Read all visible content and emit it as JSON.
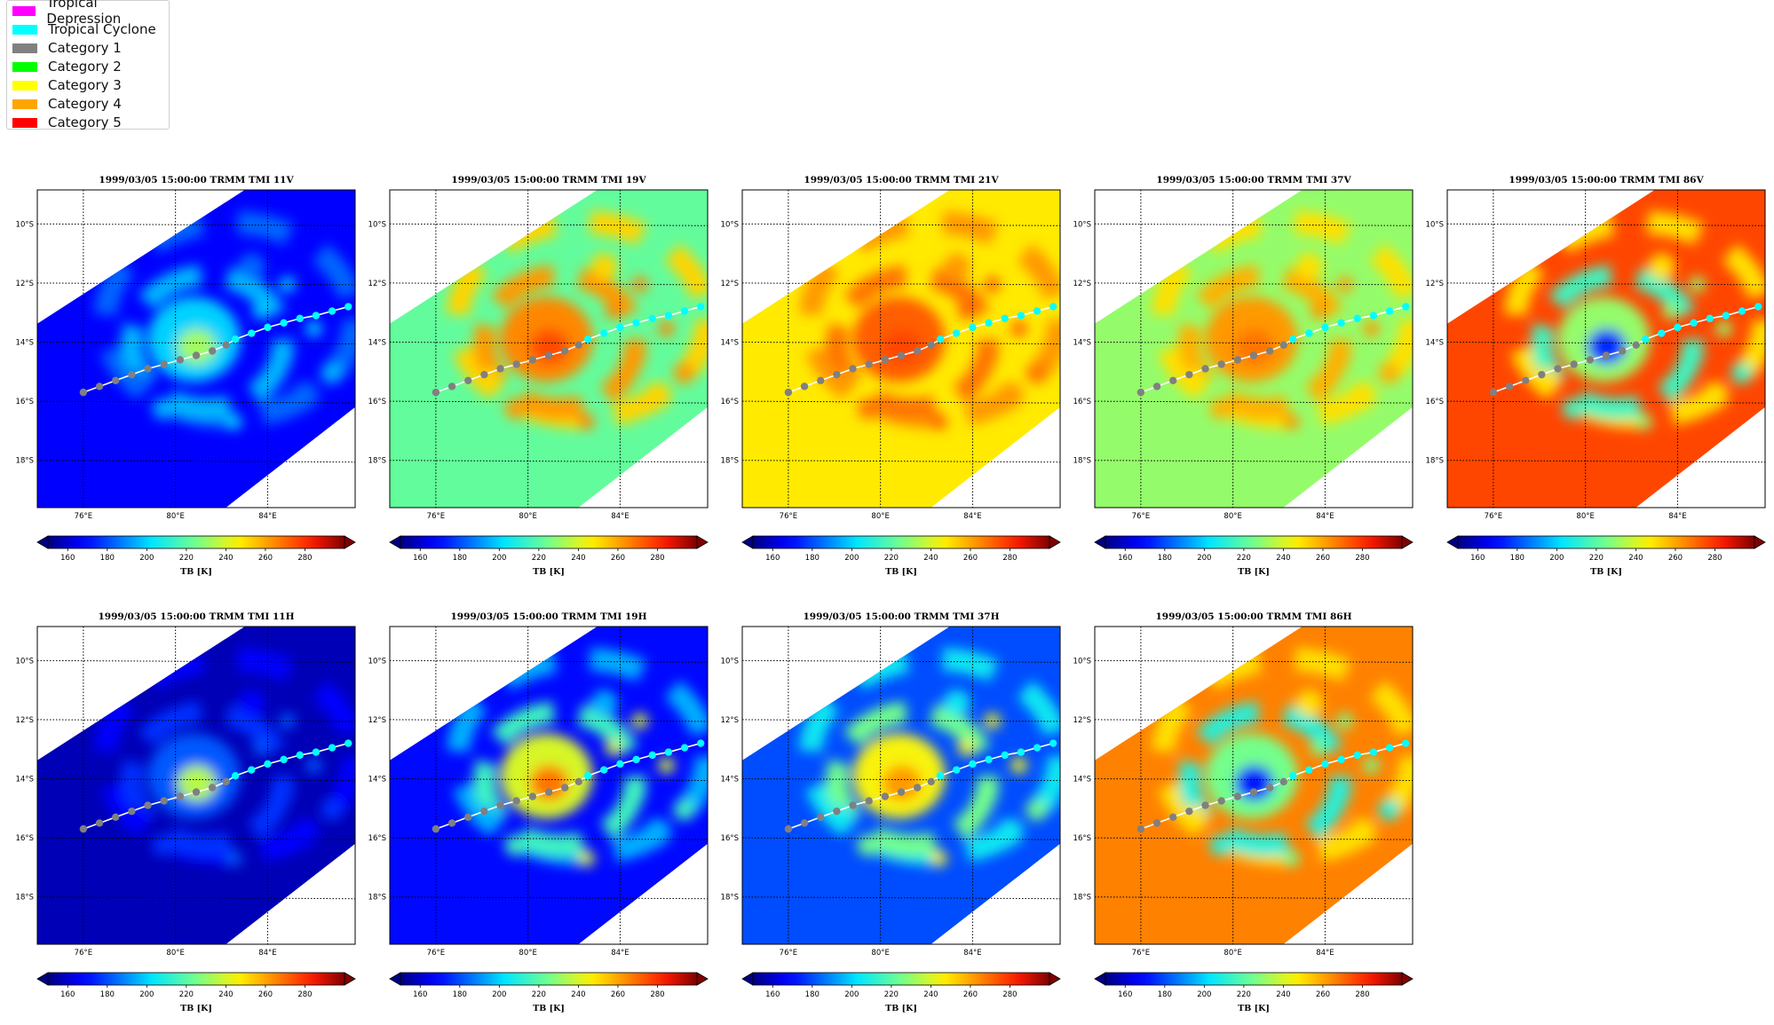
{
  "legend": {
    "items": [
      {
        "label": "Tropical Depression",
        "color": "#ff00ff"
      },
      {
        "label": "Tropical Cyclone",
        "color": "#00ffff"
      },
      {
        "label": "Category 1",
        "color": "#808080"
      },
      {
        "label": "Category 2",
        "color": "#00ff00"
      },
      {
        "label": "Category 3",
        "color": "#ffff00"
      },
      {
        "label": "Category 4",
        "color": "#ffa500"
      },
      {
        "label": "Category 5",
        "color": "#ff0000"
      }
    ]
  },
  "chart_data": [
    {
      "type": "heatmap",
      "title": "1999/03/05 15:00:00  TRMM TMI 11V",
      "channel": "11V",
      "background_tb": 168,
      "eye_tb": 232,
      "rings": [
        200,
        196,
        184
      ],
      "x_ticks": [
        "76°E",
        "80°E",
        "84°E"
      ],
      "y_ticks": [
        "10°S",
        "12°S",
        "14°S",
        "16°S",
        "18°S"
      ],
      "colorbar": {
        "ticks": [
          160,
          180,
          200,
          220,
          240,
          260,
          280
        ],
        "label": "TB [K]",
        "range": [
          150,
          300
        ],
        "colormap": "jet",
        "extend": "both"
      }
    },
    {
      "type": "heatmap",
      "title": "1999/03/05 15:00:00  TRMM TMI 19V",
      "channel": "19V",
      "background_tb": 222,
      "eye_tb": 275,
      "rings": [
        265,
        262,
        252
      ],
      "x_ticks": [
        "76°E",
        "80°E",
        "84°E"
      ],
      "y_ticks": [
        "10°S",
        "12°S",
        "14°S",
        "16°S",
        "18°S"
      ],
      "colorbar": {
        "ticks": [
          160,
          180,
          200,
          220,
          240,
          260,
          280
        ],
        "label": "TB [K]",
        "range": [
          150,
          300
        ],
        "colormap": "jet",
        "extend": "both"
      }
    },
    {
      "type": "heatmap",
      "title": "1999/03/05 15:00:00  TRMM TMI 21V",
      "channel": "21V",
      "background_tb": 248,
      "eye_tb": 276,
      "rings": [
        272,
        268,
        262
      ],
      "x_ticks": [
        "76°E",
        "80°E",
        "84°E"
      ],
      "y_ticks": [
        "10°S",
        "12°S",
        "14°S",
        "16°S",
        "18°S"
      ],
      "colorbar": {
        "ticks": [
          160,
          180,
          200,
          220,
          240,
          260,
          280
        ],
        "label": "TB [K]",
        "range": [
          150,
          300
        ],
        "colormap": "jet",
        "extend": "both"
      }
    },
    {
      "type": "heatmap",
      "title": "1999/03/05 15:00:00  TRMM TMI 37V",
      "channel": "37V",
      "background_tb": 230,
      "eye_tb": 268,
      "rings": [
        262,
        258,
        250
      ],
      "x_ticks": [
        "76°E",
        "80°E",
        "84°E"
      ],
      "y_ticks": [
        "10°S",
        "12°S",
        "14°S",
        "16°S",
        "18°S"
      ],
      "colorbar": {
        "ticks": [
          160,
          180,
          200,
          220,
          240,
          260,
          280
        ],
        "label": "TB [K]",
        "range": [
          150,
          300
        ],
        "colormap": "jet",
        "extend": "both"
      }
    },
    {
      "type": "heatmap",
      "title": "1999/03/05 15:00:00  TRMM TMI 86V",
      "channel": "86V",
      "background_tb": 276,
      "eye_tb": 175,
      "rings": [
        230,
        215,
        250
      ],
      "x_ticks": [
        "76°E",
        "80°E",
        "84°E"
      ],
      "y_ticks": [
        "10°S",
        "12°S",
        "14°S",
        "16°S",
        "18°S"
      ],
      "colorbar": {
        "ticks": [
          160,
          180,
          200,
          220,
          240,
          260,
          280
        ],
        "label": "TB [K]",
        "range": [
          150,
          300
        ],
        "colormap": "jet",
        "extend": "both"
      }
    },
    {
      "type": "heatmap",
      "title": "1999/03/05 15:00:00  TRMM TMI 11H",
      "channel": "11H",
      "background_tb": 157,
      "eye_tb": 235,
      "rings": [
        182,
        176,
        168
      ],
      "x_ticks": [
        "76°E",
        "80°E",
        "84°E"
      ],
      "y_ticks": [
        "10°S",
        "12°S",
        "14°S",
        "16°S",
        "18°S"
      ],
      "colorbar": {
        "ticks": [
          160,
          180,
          200,
          220,
          240,
          260,
          280
        ],
        "label": "TB [K]",
        "range": [
          150,
          300
        ],
        "colormap": "jet",
        "extend": "both"
      }
    },
    {
      "type": "heatmap",
      "title": "1999/03/05 15:00:00  TRMM TMI 19H",
      "channel": "19H",
      "background_tb": 170,
      "eye_tb": 268,
      "rings": [
        240,
        215,
        195
      ],
      "x_ticks": [
        "76°E",
        "80°E",
        "84°E"
      ],
      "y_ticks": [
        "10°S",
        "12°S",
        "14°S",
        "16°S",
        "18°S"
      ],
      "colorbar": {
        "ticks": [
          160,
          180,
          200,
          220,
          240,
          260,
          280
        ],
        "label": "TB [K]",
        "range": [
          150,
          300
        ],
        "colormap": "jet",
        "extend": "both"
      }
    },
    {
      "type": "heatmap",
      "title": "1999/03/05 15:00:00  TRMM TMI 37H",
      "channel": "37H",
      "background_tb": 180,
      "eye_tb": 262,
      "rings": [
        245,
        225,
        205
      ],
      "x_ticks": [
        "76°E",
        "80°E",
        "84°E"
      ],
      "y_ticks": [
        "10°S",
        "12°S",
        "14°S",
        "16°S",
        "18°S"
      ],
      "colorbar": {
        "ticks": [
          160,
          180,
          200,
          220,
          240,
          260,
          280
        ],
        "label": "TB [K]",
        "range": [
          150,
          300
        ],
        "colormap": "jet",
        "extend": "both"
      }
    },
    {
      "type": "heatmap",
      "title": "1999/03/05 15:00:00  TRMM TMI 86H",
      "channel": "86H",
      "background_tb": 266,
      "eye_tb": 172,
      "rings": [
        225,
        210,
        250
      ],
      "x_ticks": [
        "76°E",
        "80°E",
        "84°E"
      ],
      "y_ticks": [
        "10°S",
        "12°S",
        "14°S",
        "16°S",
        "18°S"
      ],
      "colorbar": {
        "ticks": [
          160,
          180,
          200,
          220,
          240,
          260,
          280
        ],
        "label": "TB [K]",
        "range": [
          150,
          300
        ],
        "colormap": "jet",
        "extend": "both"
      }
    }
  ],
  "track": {
    "points": [
      {
        "lon": 76.0,
        "lat": -15.7,
        "cat": "Category 1"
      },
      {
        "lon": 76.7,
        "lat": -15.5,
        "cat": "Category 1"
      },
      {
        "lon": 77.4,
        "lat": -15.3,
        "cat": "Category 1"
      },
      {
        "lon": 78.1,
        "lat": -15.1,
        "cat": "Category 1"
      },
      {
        "lon": 78.8,
        "lat": -14.9,
        "cat": "Category 1"
      },
      {
        "lon": 79.5,
        "lat": -14.75,
        "cat": "Category 1"
      },
      {
        "lon": 80.2,
        "lat": -14.6,
        "cat": "Category 1"
      },
      {
        "lon": 80.9,
        "lat": -14.45,
        "cat": "Category 1"
      },
      {
        "lon": 81.6,
        "lat": -14.3,
        "cat": "Category 1"
      },
      {
        "lon": 82.2,
        "lat": -14.1,
        "cat": "Category 1"
      },
      {
        "lon": 82.6,
        "lat": -13.9,
        "cat": "Tropical Cyclone"
      },
      {
        "lon": 83.3,
        "lat": -13.7,
        "cat": "Tropical Cyclone"
      },
      {
        "lon": 84.0,
        "lat": -13.5,
        "cat": "Tropical Cyclone"
      },
      {
        "lon": 84.7,
        "lat": -13.35,
        "cat": "Tropical Cyclone"
      },
      {
        "lon": 85.4,
        "lat": -13.2,
        "cat": "Tropical Cyclone"
      },
      {
        "lon": 86.1,
        "lat": -13.1,
        "cat": "Tropical Cyclone"
      },
      {
        "lon": 86.8,
        "lat": -12.95,
        "cat": "Tropical Cyclone"
      },
      {
        "lon": 87.5,
        "lat": -12.8,
        "cat": "Tropical Cyclone"
      }
    ],
    "line_color": "#ffffff"
  }
}
